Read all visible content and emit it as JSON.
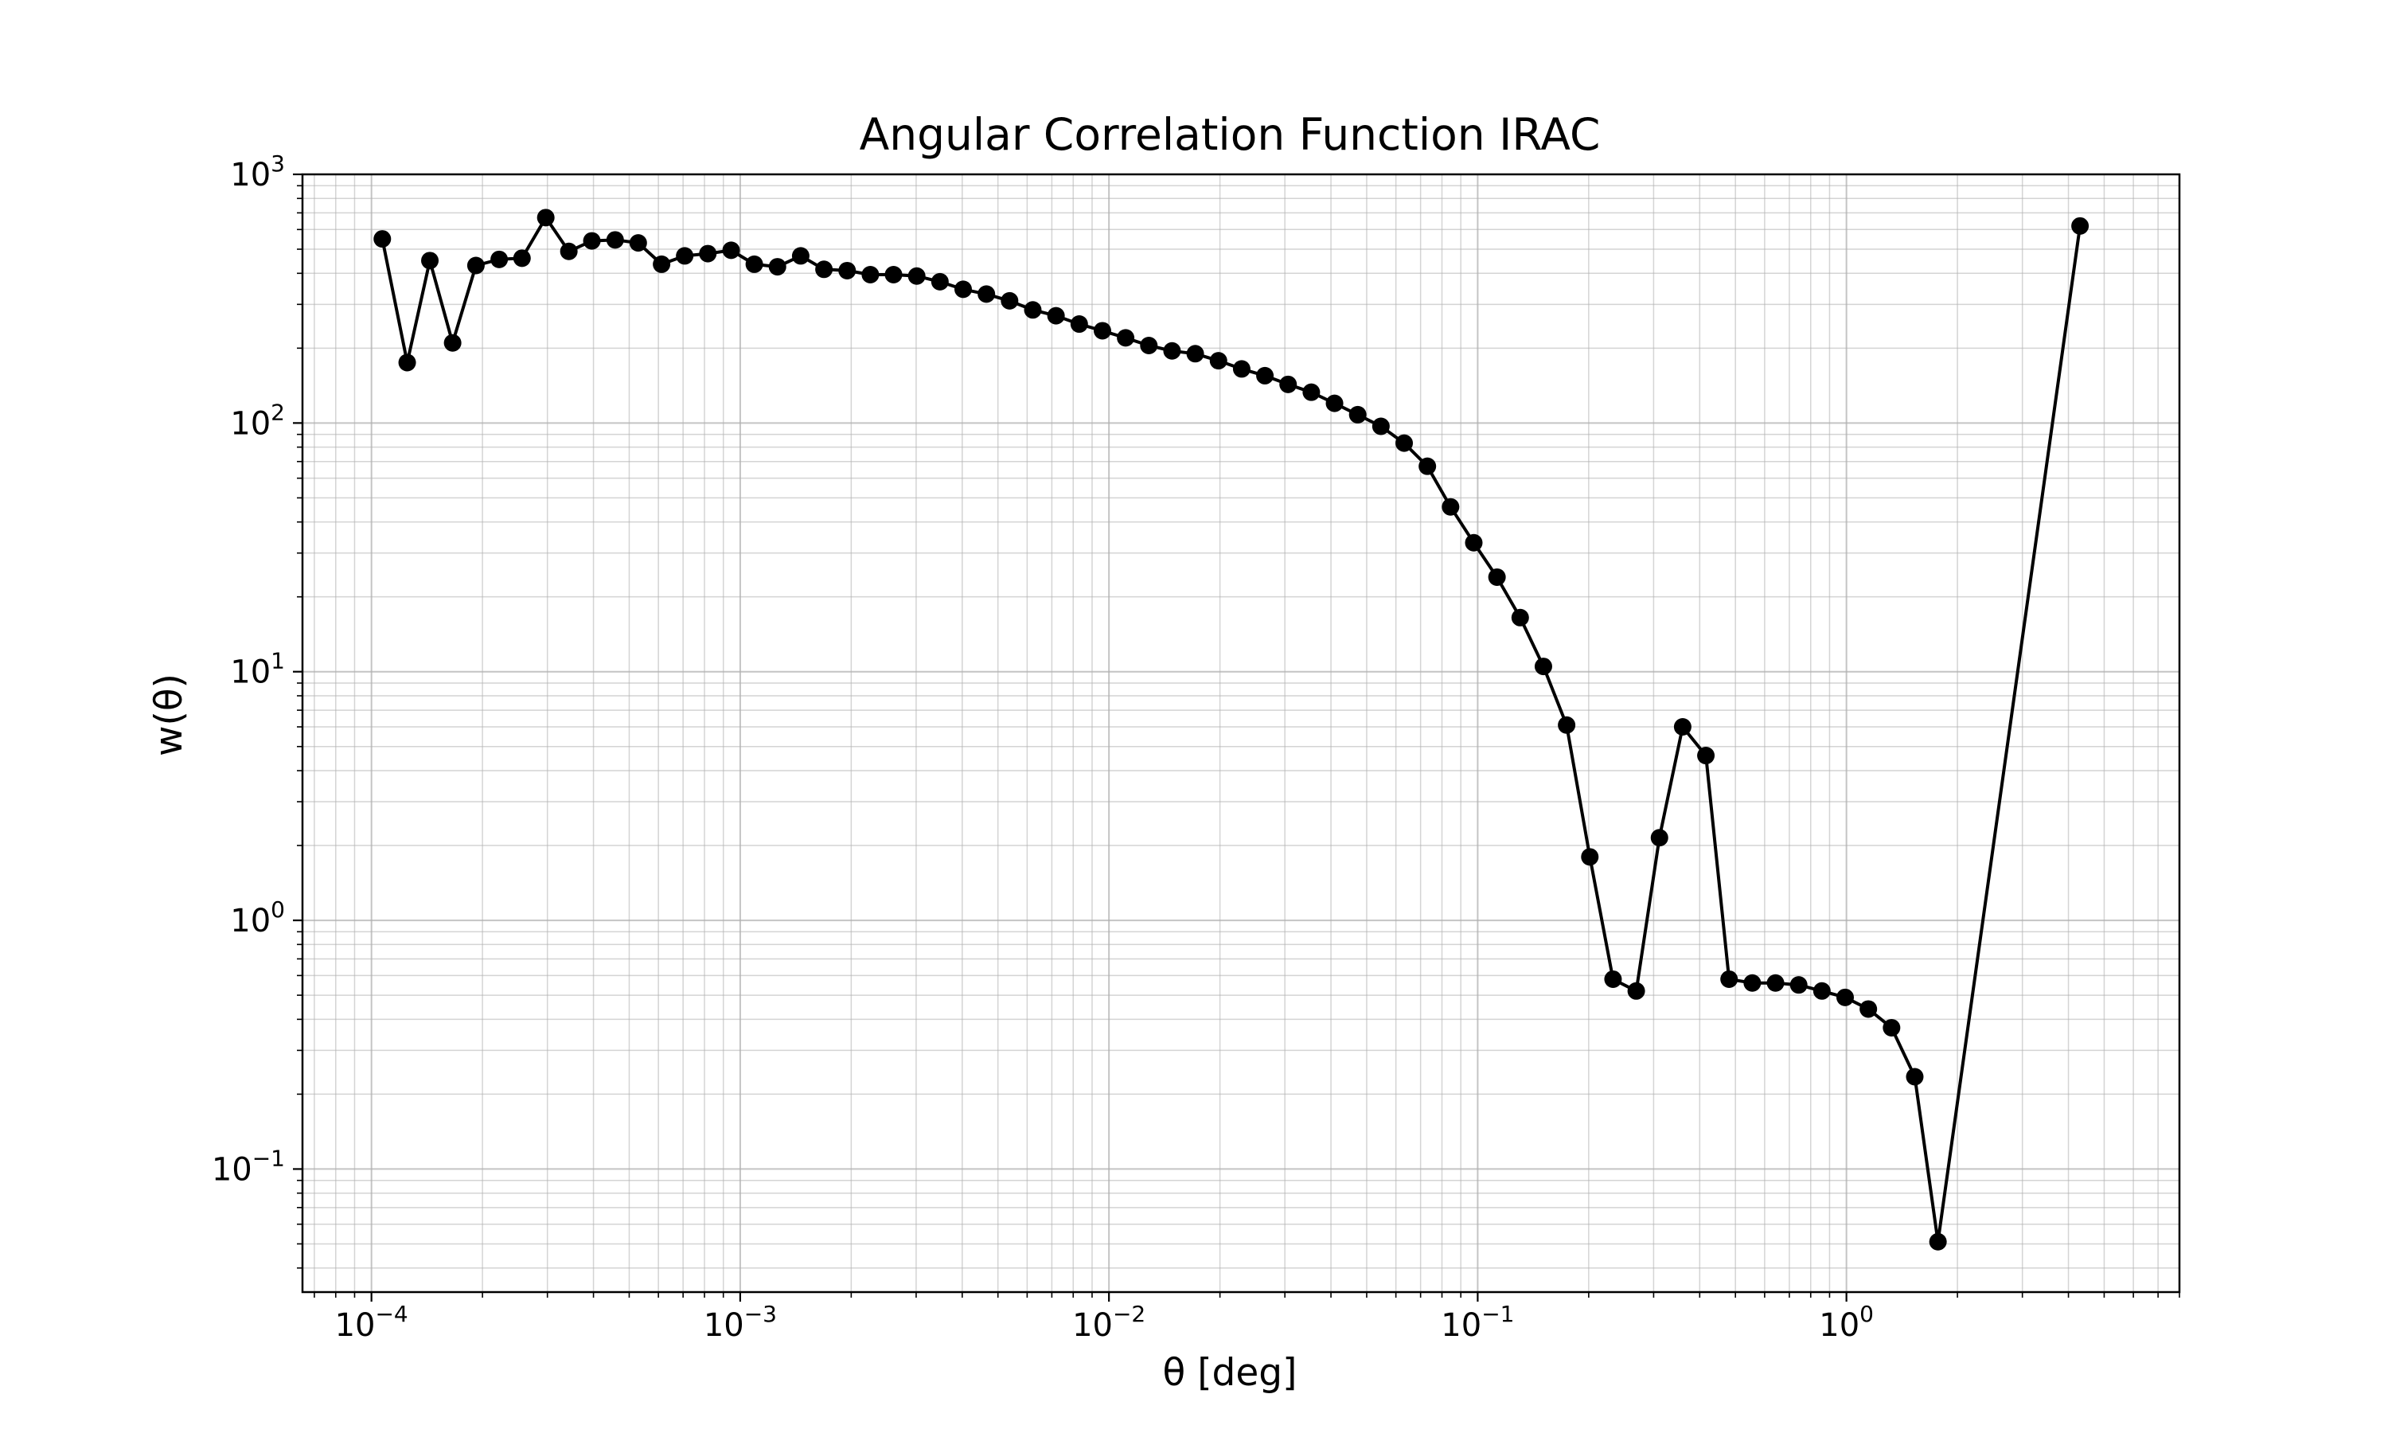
{
  "chart_data": {
    "type": "line",
    "title": "Angular Correlation Function IRAC",
    "xlabel": "θ [deg]",
    "ylabel": "w(θ)",
    "xscale": "log",
    "yscale": "log",
    "xlim": [
      6.5e-05,
      8.0
    ],
    "ylim": [
      0.032,
      1000
    ],
    "grid": "major and minor",
    "marker": "filled circle",
    "line_color": "#000000",
    "x_ticks": [
      {
        "value": 0.0001,
        "base": "10",
        "exp": "−4"
      },
      {
        "value": 0.001,
        "base": "10",
        "exp": "−3"
      },
      {
        "value": 0.01,
        "base": "10",
        "exp": "−2"
      },
      {
        "value": 0.1,
        "base": "10",
        "exp": "−1"
      },
      {
        "value": 1,
        "base": "10",
        "exp": "0"
      }
    ],
    "y_ticks": [
      {
        "value": 0.1,
        "base": "10",
        "exp": "−1"
      },
      {
        "value": 1,
        "base": "10",
        "exp": "0"
      },
      {
        "value": 10,
        "base": "10",
        "exp": "1"
      },
      {
        "value": 100,
        "base": "10",
        "exp": "2"
      },
      {
        "value": 1000,
        "base": "10",
        "exp": "3"
      }
    ],
    "series": [
      {
        "x": [
          0.000107,
          0.000125,
          0.000144,
          0.000166,
          0.000192,
          0.000222,
          0.000256,
          0.000297,
          0.000343,
          0.000396,
          0.000458,
          0.000529,
          0.000612,
          0.000707,
          0.000817,
          0.000945,
          0.001092,
          0.001262,
          0.001459,
          0.001687,
          0.00195,
          0.002254,
          0.002605,
          0.003011,
          0.003481,
          0.004024,
          0.004652,
          0.005377,
          0.006216,
          0.007185,
          0.008306,
          0.009601,
          0.011098,
          0.012829,
          0.01483,
          0.017143,
          0.019817,
          0.022907,
          0.02648,
          0.030609,
          0.035383,
          0.040902,
          0.04728,
          0.054654,
          0.063178,
          0.073031,
          0.08442,
          0.097586,
          0.112806,
          0.130399,
          0.150736,
          0.174244,
          0.201419,
          0.232832,
          0.269145,
          0.311119,
          0.359641,
          0.415731,
          0.480568,
          0.555517,
          0.642156,
          0.742306,
          0.858076,
          0.991903,
          1.146601,
          1.325426,
          1.532141,
          1.771096,
          4.3
        ],
        "y": [
          550,
          175,
          450,
          210,
          430,
          455,
          460,
          670,
          490,
          540,
          545,
          530,
          435,
          470,
          480,
          495,
          435,
          425,
          470,
          415,
          410,
          395,
          395,
          390,
          370,
          345,
          330,
          310,
          285,
          270,
          250,
          235,
          220,
          205,
          195,
          190,
          178,
          165,
          155,
          143,
          133,
          120,
          108,
          97,
          83,
          67,
          46,
          33,
          24,
          16.5,
          10.5,
          6.1,
          1.8,
          0.58,
          0.52,
          2.15,
          6.0,
          4.6,
          0.58,
          0.56,
          0.56,
          0.55,
          0.52,
          0.49,
          0.44,
          0.37,
          0.235,
          0.051,
          620
        ]
      }
    ]
  }
}
